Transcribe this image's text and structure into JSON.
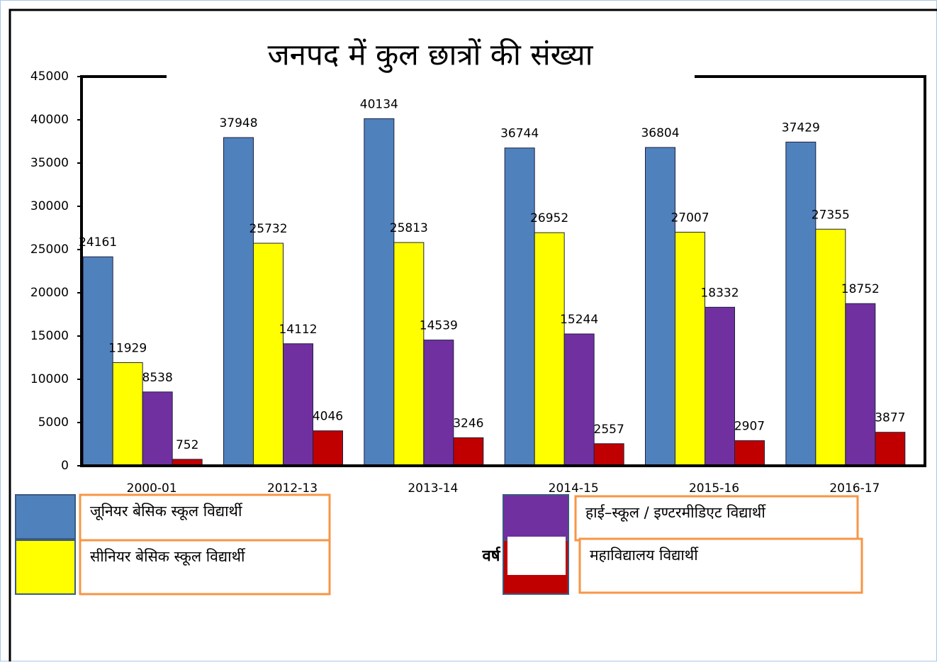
{
  "chart_data": {
    "type": "bar",
    "title": "जनपद में कुल छात्रों की संख्या",
    "x_label": "वर्ष",
    "categories": [
      "2000-01",
      "2012-13",
      "2013-14",
      "2014-15",
      "2015-16",
      "2016-17"
    ],
    "series": [
      {
        "name": "जूनियर बेसिक स्कूल विद्यार्थी",
        "color": "#4f81bd",
        "values": [
          24161,
          37948,
          40134,
          36744,
          36804,
          37429
        ]
      },
      {
        "name": "सीनियर बेसिक स्कूल विद्यार्थी",
        "color": "#ffff00",
        "values": [
          11929,
          25732,
          25813,
          26952,
          27007,
          27355
        ]
      },
      {
        "name": "हाई–स्कूल / इण्टरमीडिएट विद्यार्थी",
        "color": "#7030a0",
        "values": [
          8538,
          14112,
          14539,
          15244,
          18332,
          18752
        ]
      },
      {
        "name": "महाविद्यालय विद्यार्थी",
        "color": "#c00000",
        "values": [
          752,
          4046,
          3246,
          2557,
          2907,
          3877
        ]
      }
    ],
    "ylim": [
      0,
      45000
    ],
    "yticks": [
      0,
      5000,
      10000,
      15000,
      20000,
      25000,
      30000,
      35000,
      40000,
      45000
    ]
  }
}
